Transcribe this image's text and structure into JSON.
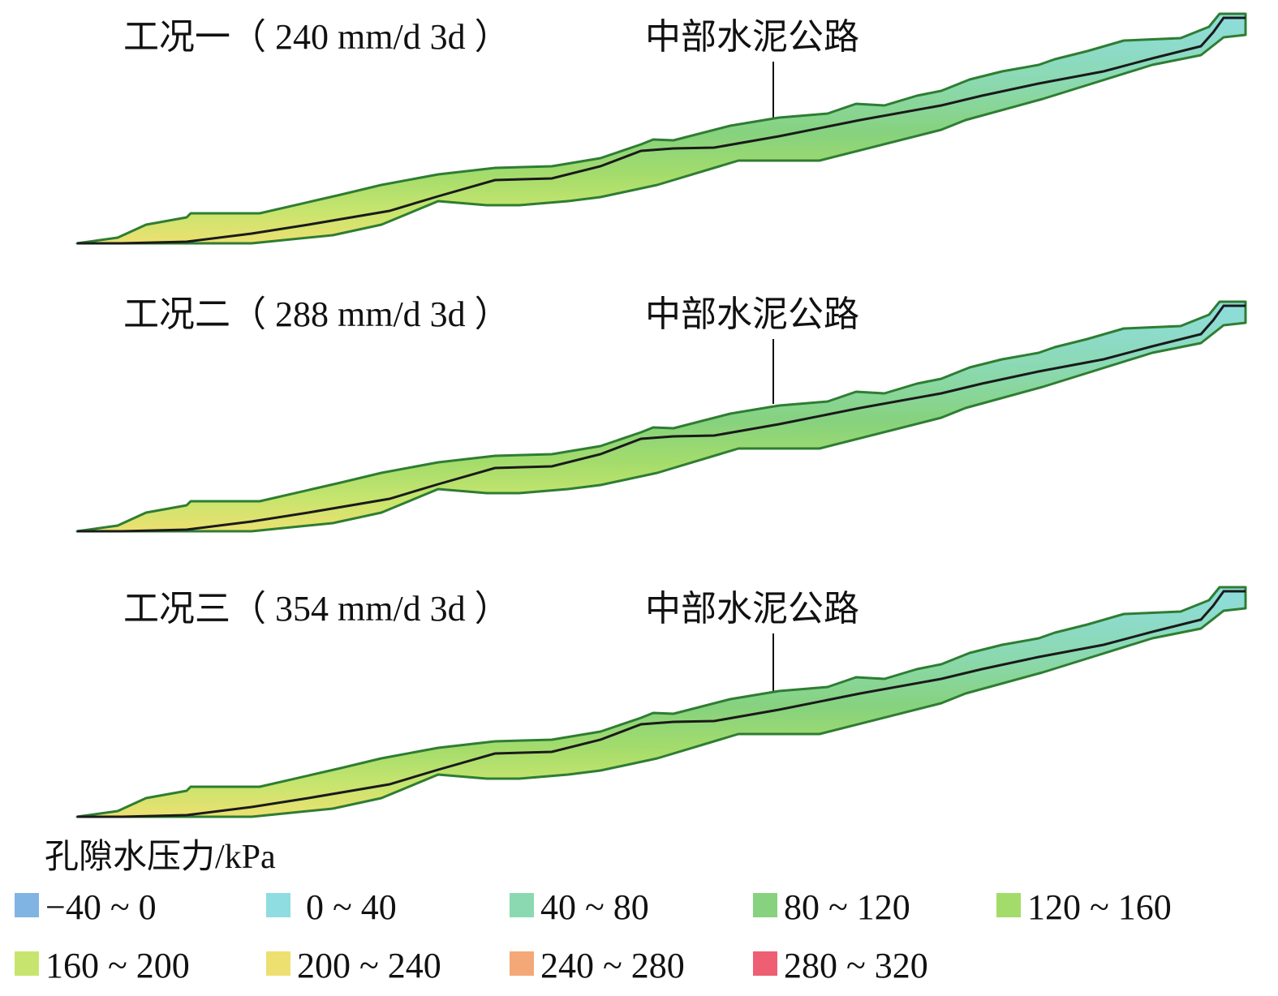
{
  "panels": [
    {
      "title": "工况一（ 240 mm/d 3d ）",
      "road_label": "中部水泥公路"
    },
    {
      "title": "工况二（ 288 mm/d 3d ）",
      "road_label": "中部水泥公路"
    },
    {
      "title": "工况三（ 354 mm/d 3d ）",
      "road_label": "中部水泥公路"
    }
  ],
  "legend": {
    "title": "孔隙水压力/kPa",
    "items": [
      {
        "label": "−40 ~ 0",
        "color": "#7fb4e3"
      },
      {
        "label": " 0 ~ 40",
        "color": "#8fdde0"
      },
      {
        "label": "40 ~ 80",
        "color": "#8bd9b0"
      },
      {
        "label": "80 ~ 120",
        "color": "#86d27e"
      },
      {
        "label": "120 ~ 160",
        "color": "#a4dc6c"
      },
      {
        "label": "160 ~ 200",
        "color": "#c7e56e"
      },
      {
        "label": "200 ~ 240",
        "color": "#ede070"
      },
      {
        "label": "240 ~ 280",
        "color": "#f4a878"
      },
      {
        "label": "280 ~ 320",
        "color": "#ee5f74"
      }
    ]
  },
  "outline_color": "#2e7d32",
  "water_table_color": "#1a1a1a"
}
